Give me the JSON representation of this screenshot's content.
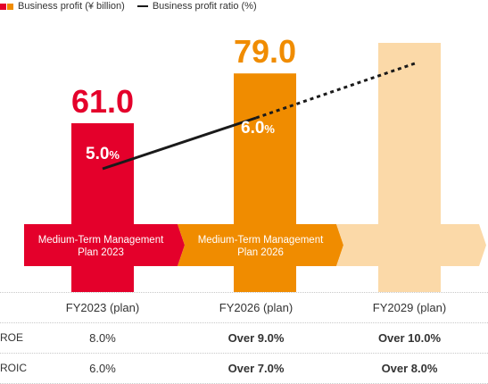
{
  "legend": {
    "bar_label": "Business profit (¥ billion)",
    "line_label": "Business profit ratio (%)",
    "bar_colors": [
      "#e4002b",
      "#f08c00"
    ],
    "line_color": "#1a1a1a"
  },
  "chart_data": {
    "type": "bar",
    "categories": [
      "FY2023 (plan)",
      "FY2026 (plan)",
      "FY2029 (plan)"
    ],
    "series": [
      {
        "name": "Business profit (¥ billion)",
        "type": "bar",
        "values": [
          61.0,
          79.0,
          null
        ],
        "value_labels": [
          "61.0",
          "79.0",
          ""
        ],
        "colors": [
          "#e4002b",
          "#f08c00",
          "#fbd9a8"
        ]
      },
      {
        "name": "Business profit ratio (%)",
        "type": "line",
        "values": [
          5.0,
          6.0,
          null
        ],
        "value_labels": [
          "5.0",
          "6.0",
          ""
        ],
        "value_suffix": "%",
        "projection": "dotted continuation toward FY2029"
      }
    ],
    "legend_position": "top-left",
    "grid": false
  },
  "plans": [
    {
      "label_lines": [
        "Medium-Term Management",
        "Plan 2023"
      ],
      "color": "#e4002b"
    },
    {
      "label_lines": [
        "Medium-Term Management",
        "Plan 2026"
      ],
      "color": "#f08c00"
    },
    {
      "label_lines": [
        "",
        ""
      ],
      "color": "#fbd9a8"
    }
  ],
  "table": {
    "headers": [
      "FY2023 (plan)",
      "FY2026 (plan)",
      "FY2029 (plan)"
    ],
    "rows": [
      {
        "label": "ROE",
        "values": [
          "8.0%",
          "Over 9.0%",
          "Over 10.0%"
        ]
      },
      {
        "label": "ROIC",
        "values": [
          "6.0%",
          "Over 7.0%",
          "Over 8.0%"
        ]
      }
    ]
  }
}
